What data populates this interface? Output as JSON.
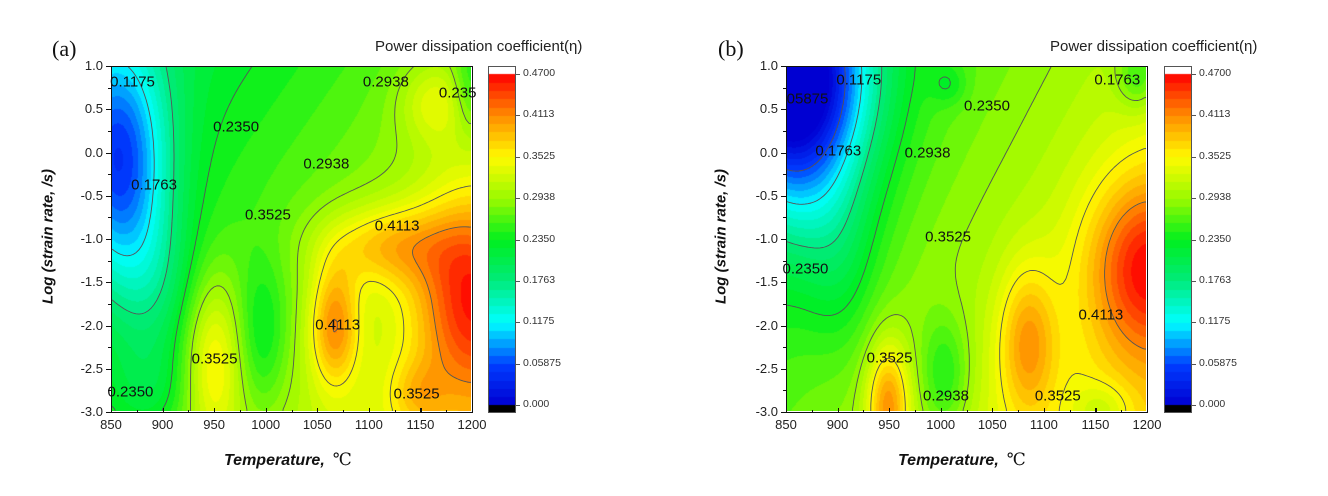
{
  "chart_data": [
    {
      "id": "a",
      "type": "heatmap",
      "panel_label": "(a)",
      "title": "",
      "colorbar_title": "Power dissipation coefficient(η)",
      "xlabel": "Temperature,",
      "xlabel_unit": "℃",
      "ylabel": "Log (strain rate, /s)",
      "xlim": [
        850,
        1200
      ],
      "ylim": [
        -3.0,
        1.0
      ],
      "x_ticks": [
        "850",
        "900",
        "950",
        "1000",
        "1050",
        "1100",
        "1150",
        "1200"
      ],
      "y_ticks": [
        "1.0",
        "0.5",
        "0.0",
        "-0.5",
        "-1.0",
        "-1.5",
        "-2.0",
        "-2.5",
        "-3.0"
      ],
      "colorbar_range": [
        0.0,
        0.47
      ],
      "colorbar_ticks": [
        "0.4700",
        "0.4113",
        "0.3525",
        "0.2938",
        "0.2350",
        "0.1763",
        "0.1175",
        "0.05875",
        "0.000"
      ],
      "contour_levels": [
        0.1175,
        0.1763,
        0.235,
        0.2938,
        0.3525,
        0.4113
      ],
      "contour_labels": [
        {
          "text": "0.1175",
          "x": 870,
          "y": 0.82
        },
        {
          "text": "0.2938",
          "x": 1117,
          "y": 0.83
        },
        {
          "text": "0.235",
          "x": 1187,
          "y": 0.7
        },
        {
          "text": "0.2350",
          "x": 971,
          "y": 0.3
        },
        {
          "text": "0.2938",
          "x": 1059,
          "y": -0.13
        },
        {
          "text": "0.1763",
          "x": 891,
          "y": -0.37
        },
        {
          "text": "0.3525",
          "x": 1002,
          "y": -0.72
        },
        {
          "text": "0.4113",
          "x": 1128,
          "y": -0.85
        },
        {
          "text": "0.4113",
          "x": 1070,
          "y": -2.0
        },
        {
          "text": "0.3525",
          "x": 950,
          "y": -2.4
        },
        {
          "text": "0.2350",
          "x": 868,
          "y": -2.78
        },
        {
          "text": "0.3525",
          "x": 1147,
          "y": -2.8
        }
      ],
      "peaks": [
        {
          "x": 1200,
          "y": -1.6,
          "value": 0.47
        },
        {
          "x": 1065,
          "y": -2.0,
          "value": 0.43
        },
        {
          "x": 945,
          "y": -2.4,
          "value": 0.36
        },
        {
          "x": 855,
          "y": 0.2,
          "value": 0.08
        }
      ]
    },
    {
      "id": "b",
      "type": "heatmap",
      "panel_label": "(b)",
      "title": "",
      "colorbar_title": "Power dissipation coefficient(η)",
      "xlabel": "Temperature,",
      "xlabel_unit": "℃",
      "ylabel": "Log (strain rate, /s)",
      "xlim": [
        850,
        1200
      ],
      "ylim": [
        -3.0,
        1.0
      ],
      "x_ticks": [
        "850",
        "900",
        "950",
        "1000",
        "1050",
        "1100",
        "1150",
        "1200"
      ],
      "y_ticks": [
        "1.0",
        "0.5",
        "0.0",
        "-0.5",
        "-1.0",
        "-1.5",
        "-2.0",
        "-2.5",
        "-3.0"
      ],
      "colorbar_range": [
        0.0,
        0.47
      ],
      "colorbar_ticks": [
        "0.4700",
        "0.4113",
        "0.3525",
        "0.2938",
        "0.2350",
        "0.1763",
        "0.1175",
        "0.05875",
        "0.000"
      ],
      "contour_levels": [
        0.05875,
        0.1175,
        0.1763,
        0.235,
        0.2938,
        0.3525,
        0.4113
      ],
      "contour_labels": [
        {
          "text": "0.1175",
          "x": 920,
          "y": 0.85
        },
        {
          "text": "05875",
          "x": 870,
          "y": 0.63
        },
        {
          "text": "0.1763",
          "x": 1172,
          "y": 0.85
        },
        {
          "text": "0.2350",
          "x": 1045,
          "y": 0.55
        },
        {
          "text": "0.1763",
          "x": 900,
          "y": 0.02
        },
        {
          "text": "0.2938",
          "x": 987,
          "y": 0.0
        },
        {
          "text": "0.3525",
          "x": 1007,
          "y": -0.98
        },
        {
          "text": "0.2350",
          "x": 868,
          "y": -1.35
        },
        {
          "text": "0.4113",
          "x": 1156,
          "y": -1.88
        },
        {
          "text": "0.3525",
          "x": 950,
          "y": -2.38
        },
        {
          "text": "0.2938",
          "x": 1005,
          "y": -2.82
        },
        {
          "text": "0.3525",
          "x": 1114,
          "y": -2.82
        }
      ],
      "peaks": [
        {
          "x": 1195,
          "y": -1.3,
          "value": 0.46
        },
        {
          "x": 1085,
          "y": -2.2,
          "value": 0.4
        },
        {
          "x": 948,
          "y": -2.9,
          "value": 0.4
        },
        {
          "x": 850,
          "y": 1.0,
          "value": 0.03
        }
      ]
    }
  ]
}
